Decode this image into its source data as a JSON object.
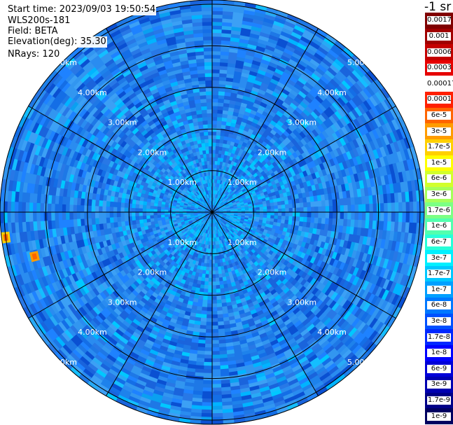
{
  "header": {
    "start_time": "Start time: 2023/09/03 19:50:54",
    "instrument": "WLS200s-181",
    "field": "Field: BETA",
    "elevation": "Elevation(deg): 35.30",
    "nrays": "NRays: 120"
  },
  "colorbar": {
    "unit": "-1 sr",
    "ticks": [
      "0.0017",
      "0.001",
      "0.0006",
      "0.0003",
      "0.00017",
      "0.0001",
      "6e-5",
      "3e-5",
      "1.7e-5",
      "1e-5",
      "6e-6",
      "3e-6",
      "1.7e-6",
      "1e-6",
      "6e-7",
      "3e-7",
      "1.7e-7",
      "1e-7",
      "6e-8",
      "3e-8",
      "1.7e-8",
      "1e-8",
      "6e-9",
      "3e-9",
      "1.7e-9",
      "1e-9"
    ],
    "colors": [
      "#800000",
      "#a00000",
      "#c40000",
      "#e60000",
      "#ffffff",
      "#ff2000",
      "#ff6400",
      "#ff9c00",
      "#ffd000",
      "#ffff00",
      "#d2ff2c",
      "#a6ff5a",
      "#7cff84",
      "#52ffae",
      "#28ffd8",
      "#00f0ff",
      "#00c8ff",
      "#00a0ff",
      "#0078ff",
      "#0050ff",
      "#0028ff",
      "#0000ff",
      "#0000d8",
      "#0000b0",
      "#000088",
      "#000060"
    ]
  },
  "chart_data": {
    "type": "heatmap",
    "projection": "polar (PPI)",
    "range_unit": "km",
    "range_rings_km": [
      1,
      2,
      3,
      4,
      5
    ],
    "range_ring_labels": [
      "1.00km",
      "2.00km",
      "3.00km",
      "4.00km",
      "5.00km"
    ],
    "max_range_km": 5.7,
    "azimuth_lines_deg": [
      0,
      30,
      60,
      90,
      120,
      150,
      180,
      210,
      240,
      270,
      300,
      330
    ],
    "nrays": 120,
    "field": "BETA",
    "color_scale": "log",
    "value_range": [
      1e-09,
      0.0017
    ],
    "dominant_value_range": [
      1e-07,
      3e-07
    ],
    "hotspots": [
      {
        "azimuth_deg": 263,
        "range_km": 5.0,
        "value": 1e-05
      },
      {
        "azimuth_deg": 256,
        "range_km": 4.4,
        "value": 3e-05
      }
    ]
  }
}
